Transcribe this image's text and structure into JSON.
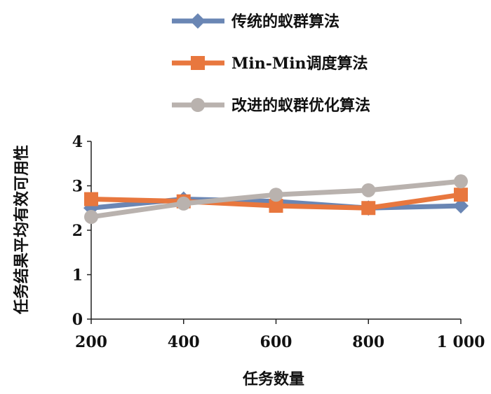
{
  "chart_data": {
    "type": "line",
    "x": [
      "200",
      "400",
      "600",
      "800",
      "1 000"
    ],
    "xlabel": "任务数量",
    "ylabel": "任务结果平均有效可用性",
    "ylim": [
      0,
      4
    ],
    "yticks": [
      "0",
      "1",
      "2",
      "3",
      "4"
    ],
    "grid": false,
    "legend_position": "top",
    "series": [
      {
        "name": "传统的蚁群算法",
        "values": [
          2.5,
          2.7,
          2.65,
          2.5,
          2.55
        ],
        "color": "#6a86b4",
        "marker": "diamond"
      },
      {
        "name": "Min-Min调度算法",
        "values": [
          2.7,
          2.65,
          2.55,
          2.5,
          2.8
        ],
        "color": "#e8773e",
        "marker": "square"
      },
      {
        "name": "改进的蚁群优化算法",
        "values": [
          2.3,
          2.6,
          2.8,
          2.9,
          3.1
        ],
        "color": "#b9b2ae",
        "marker": "circle"
      }
    ]
  }
}
